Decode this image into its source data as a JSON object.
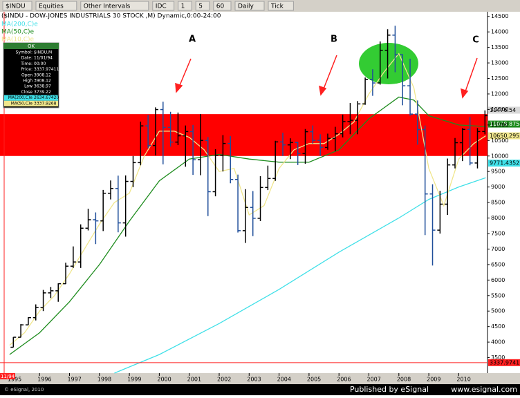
{
  "toolbar": [
    "$INDU",
    "Equities",
    "Other Intervals",
    "IDC",
    "1",
    "5",
    "60",
    "Daily",
    "Tick"
  ],
  "info_box": {
    "header": "OK",
    "rows": [
      [
        "Symbol:",
        "$INDU,M"
      ],
      [
        "Date:",
        "11/01/94"
      ],
      [
        "Time:",
        "00:00"
      ],
      [
        "Price:",
        "3337.97411"
      ],
      [
        "Open",
        "3908.12"
      ],
      [
        "High",
        "3908.12"
      ],
      [
        "Low",
        "3638.97"
      ],
      [
        "Close",
        "3739.22"
      ],
      [
        "MA(200,C)e",
        "2634.67420"
      ],
      [
        "MA(50,C)e",
        "3337.9268"
      ]
    ]
  },
  "footer": {
    "copyright": "© eSignal, 2010",
    "published": "Published by eSignal",
    "url": "www.esignal.com"
  },
  "chart_data": {
    "type": "ohlc",
    "title": "($INDU - DOW-JONES INDUSTRIALS 30 STOCK ,M) Dynamic,0:00-24:00",
    "annotations": [
      "A",
      "B",
      "C"
    ],
    "start_label": "11/94",
    "up_color": "#000000",
    "down_color": "#1f4e9a",
    "band": {
      "from": 10000,
      "to": 11350,
      "color": "#ff0000"
    },
    "xlim": [
      1994.68,
      2010.96
    ],
    "xticks": [
      1995,
      1996,
      1997,
      1998,
      1999,
      2000,
      2001,
      2002,
      2003,
      2004,
      2005,
      2006,
      2007,
      2008,
      2009,
      2010
    ],
    "ylim": [
      3000,
      14650
    ],
    "yticks": [
      3500,
      4000,
      4500,
      5000,
      5500,
      6000,
      6500,
      7000,
      7500,
      8000,
      8500,
      9000,
      9500,
      10000,
      10500,
      11000,
      11500,
      12000,
      12500,
      13000,
      13500,
      14000,
      14500
    ],
    "x": [
      1995.125,
      1995.375,
      1995.625,
      1995.875,
      1996.125,
      1996.375,
      1996.625,
      1996.875,
      1997.125,
      1997.375,
      1997.625,
      1997.875,
      1998.125,
      1998.375,
      1998.625,
      1998.875,
      1999.125,
      1999.375,
      1999.625,
      1999.875,
      2000.125,
      2000.375,
      2000.625,
      2000.875,
      2001.125,
      2001.375,
      2001.625,
      2001.875,
      2002.125,
      2002.375,
      2002.625,
      2002.875,
      2003.125,
      2003.375,
      2003.625,
      2003.875,
      2004.125,
      2004.375,
      2004.625,
      2004.875,
      2005.125,
      2005.375,
      2005.625,
      2005.875,
      2006.125,
      2006.375,
      2006.625,
      2006.875,
      2007.125,
      2007.375,
      2007.625,
      2007.875,
      2008.125,
      2008.375,
      2008.625,
      2008.875,
      2009.125,
      2009.375,
      2009.625,
      2009.875,
      2010.125,
      2010.375,
      2010.625,
      2010.875
    ],
    "ohlc": [
      [
        3834,
        4160,
        3832,
        4157
      ],
      [
        4157,
        4580,
        4150,
        4556
      ],
      [
        4556,
        4802,
        4550,
        4789
      ],
      [
        4789,
        5216,
        4700,
        5117
      ],
      [
        5117,
        5683,
        5000,
        5587
      ],
      [
        5587,
        5778,
        5420,
        5654
      ],
      [
        5654,
        5894,
        5300,
        5882
      ],
      [
        5882,
        6560,
        5870,
        6448
      ],
      [
        6448,
        7085,
        6390,
        6583
      ],
      [
        6583,
        7796,
        6390,
        7672
      ],
      [
        7672,
        8300,
        7600,
        7945
      ],
      [
        7945,
        8180,
        7160,
        7908
      ],
      [
        7908,
        8906,
        7580,
        8799
      ],
      [
        8799,
        9211,
        8600,
        8952
      ],
      [
        8952,
        9367,
        7539,
        7843
      ],
      [
        7843,
        9374,
        7400,
        9181
      ],
      [
        9181,
        10000,
        8997,
        9786
      ],
      [
        9786,
        11107,
        9700,
        10970
      ],
      [
        10970,
        11326,
        10250,
        10337
      ],
      [
        10337,
        11568,
        10020,
        11497
      ],
      [
        11497,
        11750,
        9731,
        10922
      ],
      [
        10922,
        11425,
        10300,
        10448
      ],
      [
        10448,
        11401,
        10350,
        10651
      ],
      [
        10651,
        10983,
        9654,
        10787
      ],
      [
        10787,
        11000,
        9390,
        9879
      ],
      [
        9879,
        11350,
        9380,
        10502
      ],
      [
        10502,
        10610,
        8062,
        8848
      ],
      [
        8848,
        10220,
        8700,
        10022
      ],
      [
        10022,
        10673,
        9500,
        10404
      ],
      [
        10404,
        10640,
        9120,
        9243
      ],
      [
        9243,
        9400,
        7532,
        7592
      ],
      [
        7592,
        8930,
        7197,
        8342
      ],
      [
        8342,
        8870,
        7416,
        7992
      ],
      [
        7992,
        9350,
        7900,
        8985
      ],
      [
        8985,
        9690,
        8900,
        9275
      ],
      [
        9275,
        10490,
        9200,
        10454
      ],
      [
        10454,
        10750,
        10000,
        10358
      ],
      [
        10358,
        10570,
        9900,
        10435
      ],
      [
        10435,
        10460,
        9708,
        10080
      ],
      [
        10080,
        10870,
        9750,
        10783
      ],
      [
        10783,
        10984,
        10400,
        10504
      ],
      [
        10504,
        10700,
        10000,
        10275
      ],
      [
        10275,
        10720,
        10200,
        10569
      ],
      [
        10569,
        10940,
        10150,
        10718
      ],
      [
        10718,
        11335,
        10600,
        11109
      ],
      [
        11109,
        11709,
        10700,
        11150
      ],
      [
        11150,
        11770,
        10700,
        11679
      ],
      [
        11679,
        12529,
        11650,
        12463
      ],
      [
        12463,
        12796,
        11940,
        12354
      ],
      [
        12354,
        13692,
        12300,
        13408
      ],
      [
        13408,
        14087,
        12500,
        13896
      ],
      [
        13896,
        14198,
        12700,
        13265
      ],
      [
        13265,
        13280,
        11635,
        12263
      ],
      [
        12263,
        13136,
        11300,
        11350
      ],
      [
        11350,
        11790,
        10365,
        10851
      ],
      [
        10851,
        10984,
        7450,
        8776
      ],
      [
        8776,
        9088,
        6469,
        7609
      ],
      [
        7609,
        8877,
        7500,
        8447
      ],
      [
        8447,
        9917,
        8100,
        9712
      ],
      [
        9712,
        10580,
        9600,
        10428
      ],
      [
        10428,
        10900,
        9835,
        10857
      ],
      [
        10857,
        11258,
        9700,
        9774
      ],
      [
        9774,
        10900,
        9600,
        10788
      ],
      [
        10788,
        11470,
        10700,
        11300
      ]
    ],
    "series": [
      {
        "name": "MA(200,C)e",
        "color": "#40e0e8",
        "x": [
          1998.5,
          2000,
          2002,
          2004,
          2006,
          2008,
          2009,
          2010,
          2010.9
        ],
        "values": [
          3000,
          3600,
          4600,
          5700,
          6900,
          8000,
          8600,
          9000,
          9300
        ]
      },
      {
        "name": "MA(50,C)e",
        "color": "#1e8c1e",
        "x": [
          1995,
          1996,
          1997,
          1998,
          1999,
          2000,
          2001,
          2002,
          2003,
          2004,
          2005,
          2006,
          2007,
          2008,
          2008.5,
          2009,
          2010,
          2010.9
        ],
        "values": [
          3600,
          4300,
          5300,
          6500,
          7900,
          9200,
          9900,
          10050,
          9900,
          9800,
          9800,
          10200,
          11200,
          11900,
          11800,
          11300,
          11000,
          10950
        ]
      },
      {
        "name": "MA(10,C)e",
        "color": "#f0e68c",
        "x": [
          1995,
          1995.5,
          1996,
          1996.5,
          1997,
          1997.5,
          1998,
          1998.5,
          1999,
          1999.5,
          2000,
          2000.5,
          2001,
          2001.5,
          2002,
          2002.5,
          2003,
          2003.5,
          2004,
          2004.5,
          2005,
          2005.5,
          2006,
          2006.5,
          2007,
          2007.5,
          2008,
          2008.5,
          2009,
          2009.5,
          2010,
          2010.5,
          2010.9
        ],
        "values": [
          3900,
          4300,
          5000,
          5500,
          6200,
          7000,
          7800,
          8500,
          8800,
          10000,
          10800,
          10800,
          10600,
          10200,
          9500,
          9600,
          8100,
          8400,
          9600,
          10200,
          10400,
          10400,
          10700,
          11100,
          12000,
          12700,
          13300,
          12200,
          9600,
          8400,
          9900,
          10400,
          10650
        ]
      }
    ],
    "price_labels": [
      {
        "value": 11476.54,
        "label": "11476.54",
        "color": "#d8d8d8"
      },
      {
        "value": 11028.8758,
        "label": "11028.8758",
        "color": "#1e8c1e"
      },
      {
        "value": 10650.2952,
        "label": "10650.2952",
        "color": "#f0e68c"
      },
      {
        "value": 9771.4352,
        "label": "9771.4352",
        "color": "#40e0e8"
      },
      {
        "value": 3337.97411,
        "label": "3337.97411",
        "color": "#ff2020"
      }
    ]
  }
}
